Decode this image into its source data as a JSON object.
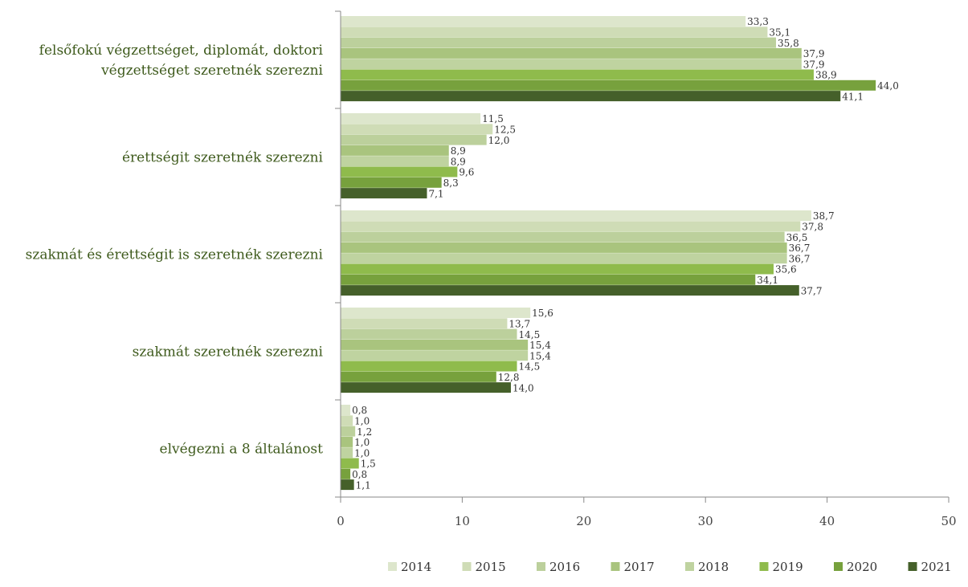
{
  "chart_data": {
    "type": "bar",
    "orientation": "horizontal",
    "categories": [
      [
        "felsőfokú végzettséget, diplomát, doktori",
        "végzettséget szeretnék szerezni"
      ],
      [
        "érettségit szeretnék szerezni"
      ],
      [
        "szakmát és érettségit is szeretnék szerezni"
      ],
      [
        "szakmát szeretnék szerezni"
      ],
      [
        "elvégezni a 8 általánost"
      ]
    ],
    "series": [
      {
        "name": "2014",
        "color": "#dde6cc",
        "values": [
          33.3,
          11.5,
          38.7,
          15.6,
          0.8
        ],
        "labels": [
          "33,3",
          "11,5",
          "38,7",
          "15,6",
          "0,8"
        ]
      },
      {
        "name": "2015",
        "color": "#cfdcb6",
        "values": [
          35.1,
          12.5,
          37.8,
          13.7,
          1.0
        ],
        "labels": [
          "35,1",
          "12,5",
          "37,8",
          "13,7",
          "1,0"
        ]
      },
      {
        "name": "2016",
        "color": "#bcd09c",
        "values": [
          35.8,
          12.0,
          36.5,
          14.5,
          1.2
        ],
        "labels": [
          "35,8",
          "12,0",
          "36,5",
          "14,5",
          "1,2"
        ]
      },
      {
        "name": "2017",
        "color": "#a9c47e",
        "values": [
          37.9,
          8.9,
          36.7,
          15.4,
          1.0
        ],
        "labels": [
          "37,9",
          "8,9",
          "36,7",
          "15,4",
          "1,0"
        ]
      },
      {
        "name": "2018",
        "color": "#bfd3a0",
        "values": [
          37.9,
          8.9,
          36.7,
          15.4,
          1.0
        ],
        "labels": [
          "37,9",
          "8,9",
          "36,7",
          "15,4",
          "1,0"
        ]
      },
      {
        "name": "2019",
        "color": "#8fbb4c",
        "values": [
          38.9,
          9.6,
          35.6,
          14.5,
          1.5
        ],
        "labels": [
          "38,9",
          "9,6",
          "35,6",
          "14,5",
          "1,5"
        ]
      },
      {
        "name": "2020",
        "color": "#77a13d",
        "values": [
          44.0,
          8.3,
          34.1,
          12.8,
          0.8
        ],
        "labels": [
          "44,0",
          "8,3",
          "34,1",
          "12,8",
          "0,8"
        ]
      },
      {
        "name": "2021",
        "color": "#45602a",
        "values": [
          41.1,
          7.1,
          37.7,
          14.0,
          1.1
        ],
        "labels": [
          "41,1",
          "7,1",
          "37,7",
          "14,0",
          "1,1"
        ]
      }
    ],
    "xlim": [
      0,
      50
    ],
    "xticks": [
      0,
      10,
      20,
      30,
      40,
      50
    ],
    "title": "",
    "xlabel": "",
    "ylabel": "",
    "grid": false,
    "legend_position": "bottom-right"
  }
}
